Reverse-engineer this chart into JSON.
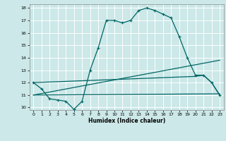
{
  "title": "",
  "xlabel": "Humidex (Indice chaleur)",
  "bg_color": "#cce8e8",
  "grid_color": "#ffffff",
  "line_color": "#006666",
  "xlim": [
    -0.5,
    23.5
  ],
  "ylim": [
    9.8,
    18.3
  ],
  "xticks": [
    0,
    1,
    2,
    3,
    4,
    5,
    6,
    7,
    8,
    9,
    10,
    11,
    12,
    13,
    14,
    15,
    16,
    17,
    18,
    19,
    20,
    21,
    22,
    23
  ],
  "yticks": [
    10,
    11,
    12,
    13,
    14,
    15,
    16,
    17,
    18
  ],
  "line1_x": [
    0,
    1,
    2,
    3,
    4,
    5,
    6,
    7,
    8,
    9,
    10,
    11,
    12,
    13,
    14,
    15,
    16,
    17,
    18,
    19,
    20,
    21,
    22,
    23
  ],
  "line1_y": [
    12.0,
    11.5,
    10.7,
    10.6,
    10.5,
    9.85,
    10.5,
    13.0,
    14.8,
    17.0,
    17.0,
    16.8,
    17.0,
    17.8,
    18.0,
    17.8,
    17.5,
    17.2,
    15.7,
    14.0,
    12.6,
    12.6,
    12.0,
    11.0
  ],
  "line2_x": [
    0,
    23
  ],
  "line2_y": [
    11.0,
    13.8
  ],
  "line3_x": [
    0,
    23
  ],
  "line3_y": [
    11.0,
    11.1
  ],
  "line4_x": [
    0,
    20,
    21,
    22,
    23
  ],
  "line4_y": [
    12.0,
    12.5,
    12.6,
    12.0,
    11.0
  ]
}
